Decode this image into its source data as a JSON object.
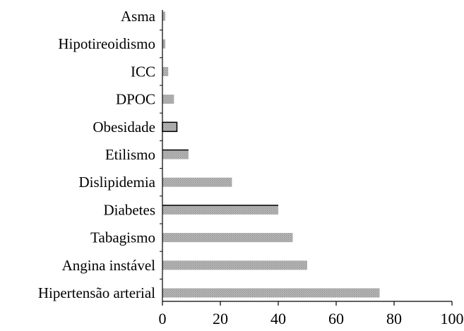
{
  "chart_data": {
    "type": "bar",
    "orientation": "horizontal",
    "categories": [
      "Asma",
      "Hipotireoidismo",
      "ICC",
      "DPOC",
      "Obesidade",
      "Etilismo",
      "Dislipidemia",
      "Diabetes",
      "Tabagismo",
      "Angina instável",
      "Hipertensão arterial"
    ],
    "values": [
      1,
      1,
      2,
      4,
      5,
      9,
      24,
      40,
      45,
      50,
      75
    ],
    "xlim": [
      0,
      100
    ],
    "xticks": [
      0,
      20,
      40,
      60,
      80,
      100
    ],
    "grid": false,
    "legend": "none",
    "colors": {
      "bar_fill": "#b8b8b8",
      "bar_pattern": "#8c8c8c",
      "axis": "#000000"
    }
  }
}
